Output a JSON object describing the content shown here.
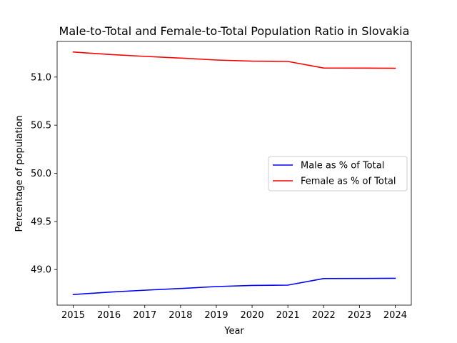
{
  "chart_data": {
    "type": "line",
    "title": "Male-to-Total and Female-to-Total Population Ratio in Slovakia",
    "xlabel": "Year",
    "ylabel": "Percentage of population",
    "x": [
      2015,
      2016,
      2017,
      2018,
      2019,
      2020,
      2021,
      2022,
      2023,
      2024
    ],
    "xlim": [
      2014.55,
      2024.45
    ],
    "ylim": [
      48.63,
      51.37
    ],
    "yticks": [
      49.0,
      49.5,
      50.0,
      50.5,
      51.0
    ],
    "ytick_labels": [
      "49.0",
      "49.5",
      "50.0",
      "50.5",
      "51.0"
    ],
    "grid": false,
    "legend_position": "center-right",
    "series": [
      {
        "name": "Male as % of Total",
        "color": "#0000ff",
        "values": [
          48.74,
          48.765,
          48.785,
          48.803,
          48.823,
          48.835,
          48.838,
          48.906,
          48.907,
          48.909
        ]
      },
      {
        "name": "Female as % of Total",
        "color": "#ff0000",
        "values": [
          51.26,
          51.235,
          51.215,
          51.197,
          51.177,
          51.165,
          51.162,
          51.094,
          51.093,
          51.091
        ]
      }
    ]
  }
}
